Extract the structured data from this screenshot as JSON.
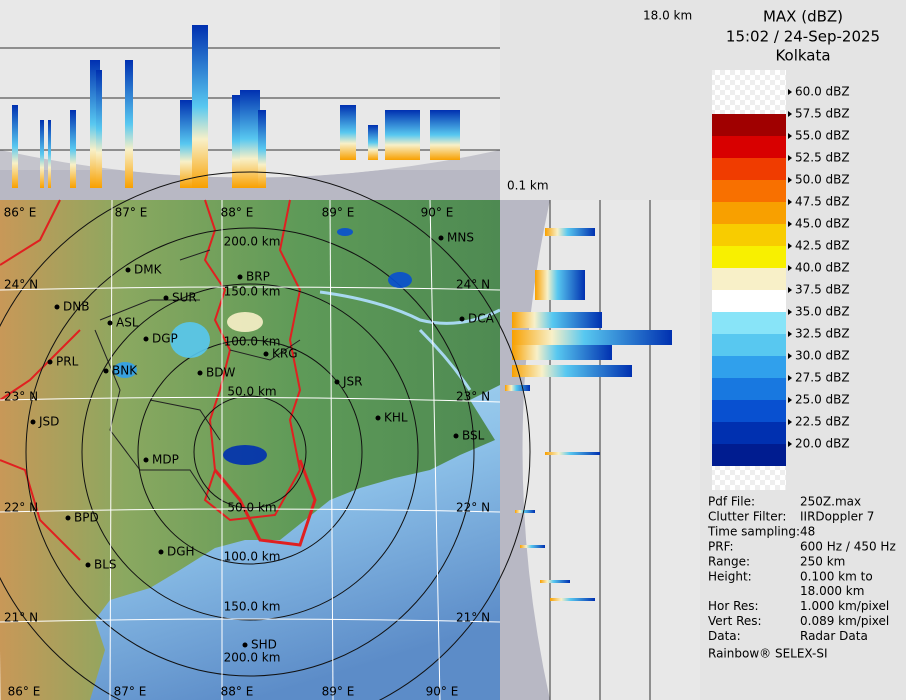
{
  "header": {
    "title": "MAX (dBZ)",
    "timestamp": "15:02 / 24-Sep-2025",
    "site": "Kolkata"
  },
  "profile_labels": {
    "top_height": "18.0 km",
    "bottom_height": "0.1 km"
  },
  "legend": {
    "labels": [
      "60.0 dBZ",
      "57.5 dBZ",
      "55.0 dBZ",
      "52.5 dBZ",
      "50.0 dBZ",
      "47.5 dBZ",
      "45.0 dBZ",
      "42.5 dBZ",
      "40.0 dBZ",
      "37.5 dBZ",
      "35.0 dBZ",
      "32.5 dBZ",
      "30.0 dBZ",
      "27.5 dBZ",
      "25.0 dBZ",
      "22.5 dBZ",
      "20.0 dBZ"
    ],
    "colors": [
      "#a00000",
      "#d80000",
      "#f03c00",
      "#f87000",
      "#f8a000",
      "#f8cc00",
      "#f8f000",
      "#f8f0c8",
      "#ffffff",
      "#88e4f8",
      "#58c8f0",
      "#30a0ec",
      "#1878e0",
      "#0850d0",
      "#0030b0",
      "#001c90"
    ]
  },
  "map": {
    "lon_labels_top": [
      "86° E",
      "87° E",
      "88° E",
      "89° E",
      "90° E"
    ],
    "lon_labels_bottom": [
      "86° E",
      "87° E",
      "88° E",
      "89° E",
      "90° E"
    ],
    "lat_labels_left": [
      "24° N",
      "23° N",
      "22° N",
      "21° N"
    ],
    "lat_labels_right": [
      "24° N",
      "23° N",
      "22° N",
      "21° N"
    ],
    "range_labels": [
      "200.0 km",
      "150.0 km",
      "100.0 km",
      "50.0 km",
      "50.0 km",
      "100.0 km",
      "150.0 km",
      "200.0 km"
    ],
    "cities": [
      "MNS",
      "BRP",
      "DMK",
      "SUR",
      "DNB",
      "ASL",
      "DGP",
      "KRG",
      "PRL",
      "BNK",
      "BDW",
      "JSR",
      "DCA",
      "KHL",
      "BSL",
      "JSD",
      "MDP",
      "BPD",
      "DGH",
      "BLS",
      "SHD"
    ]
  },
  "info": {
    "rows": [
      [
        "Pdf File:",
        "250Z.max"
      ],
      [
        "Clutter Filter:",
        "IIRDoppler 7"
      ],
      [
        "Time sampling:",
        "48"
      ],
      [
        "PRF:",
        "600 Hz / 450 Hz"
      ],
      [
        "Range:",
        "250 km"
      ],
      [
        "Height:",
        "0.100 km to",
        "18.000 km"
      ],
      [
        "Hor Res:",
        "1.000 km/pixel"
      ],
      [
        "Vert Res:",
        "0.089 km/pixel"
      ],
      [
        "Data:",
        "Radar Data"
      ]
    ]
  },
  "footer": "Rainbow® SELEX-SI"
}
